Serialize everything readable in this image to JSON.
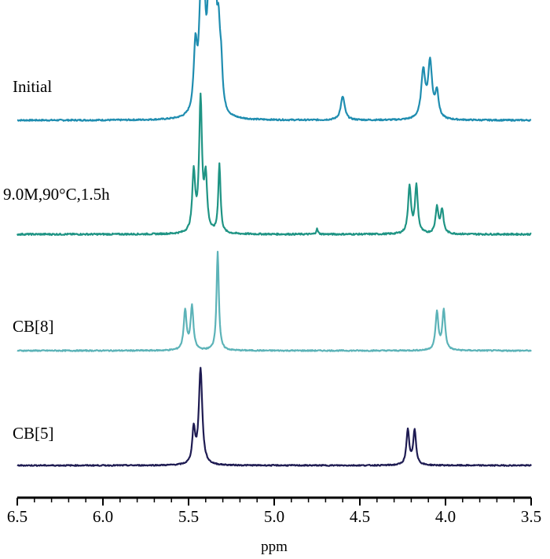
{
  "chart_data": {
    "type": "line",
    "xlabel": "ppm",
    "xlim": [
      6.5,
      3.5
    ],
    "x_ticks": [
      "6.5",
      "6.0",
      "5.5",
      "5.0",
      "4.5",
      "4.0",
      "3.5"
    ],
    "grid": false,
    "legend": "none",
    "series": [
      {
        "name": "Initial",
        "color": "#1f8db0",
        "peaks": [
          {
            "ppm": 5.46,
            "height": 0.55,
            "width": 0.012
          },
          {
            "ppm": 5.43,
            "height": 0.75,
            "width": 0.012
          },
          {
            "ppm": 5.41,
            "height": 0.82,
            "width": 0.012
          },
          {
            "ppm": 5.38,
            "height": 0.9,
            "width": 0.012
          },
          {
            "ppm": 5.36,
            "height": 1.0,
            "width": 0.01
          },
          {
            "ppm": 5.345,
            "height": 0.92,
            "width": 0.01
          },
          {
            "ppm": 5.325,
            "height": 0.55,
            "width": 0.01
          },
          {
            "ppm": 5.31,
            "height": 0.35,
            "width": 0.01
          },
          {
            "ppm": 4.6,
            "height": 0.2,
            "width": 0.014
          },
          {
            "ppm": 4.13,
            "height": 0.4,
            "width": 0.014
          },
          {
            "ppm": 4.09,
            "height": 0.47,
            "width": 0.014
          },
          {
            "ppm": 4.05,
            "height": 0.22,
            "width": 0.012
          }
        ]
      },
      {
        "name": "9.0M,90°C,1.5h",
        "color": "#1f9484",
        "peaks": [
          {
            "ppm": 5.47,
            "height": 0.45,
            "width": 0.01
          },
          {
            "ppm": 5.43,
            "height": 1.0,
            "width": 0.01
          },
          {
            "ppm": 5.4,
            "height": 0.4,
            "width": 0.01
          },
          {
            "ppm": 5.32,
            "height": 0.52,
            "width": 0.008
          },
          {
            "ppm": 4.75,
            "height": 0.04,
            "width": 0.006
          },
          {
            "ppm": 4.21,
            "height": 0.36,
            "width": 0.01
          },
          {
            "ppm": 4.17,
            "height": 0.36,
            "width": 0.01
          },
          {
            "ppm": 4.05,
            "height": 0.2,
            "width": 0.01
          },
          {
            "ppm": 4.02,
            "height": 0.18,
            "width": 0.01
          }
        ]
      },
      {
        "name": "CB[8]",
        "color": "#5cb3b8",
        "peaks": [
          {
            "ppm": 5.52,
            "height": 0.4,
            "width": 0.01
          },
          {
            "ppm": 5.48,
            "height": 0.44,
            "width": 0.01
          },
          {
            "ppm": 5.33,
            "height": 1.0,
            "width": 0.008
          },
          {
            "ppm": 4.05,
            "height": 0.38,
            "width": 0.01
          },
          {
            "ppm": 4.01,
            "height": 0.4,
            "width": 0.01
          }
        ]
      },
      {
        "name": "CB[5]",
        "color": "#1e1b52",
        "peaks": [
          {
            "ppm": 5.47,
            "height": 0.36,
            "width": 0.01
          },
          {
            "ppm": 5.43,
            "height": 1.0,
            "width": 0.012
          },
          {
            "ppm": 4.22,
            "height": 0.36,
            "width": 0.01
          },
          {
            "ppm": 4.18,
            "height": 0.36,
            "width": 0.01
          }
        ]
      }
    ]
  }
}
